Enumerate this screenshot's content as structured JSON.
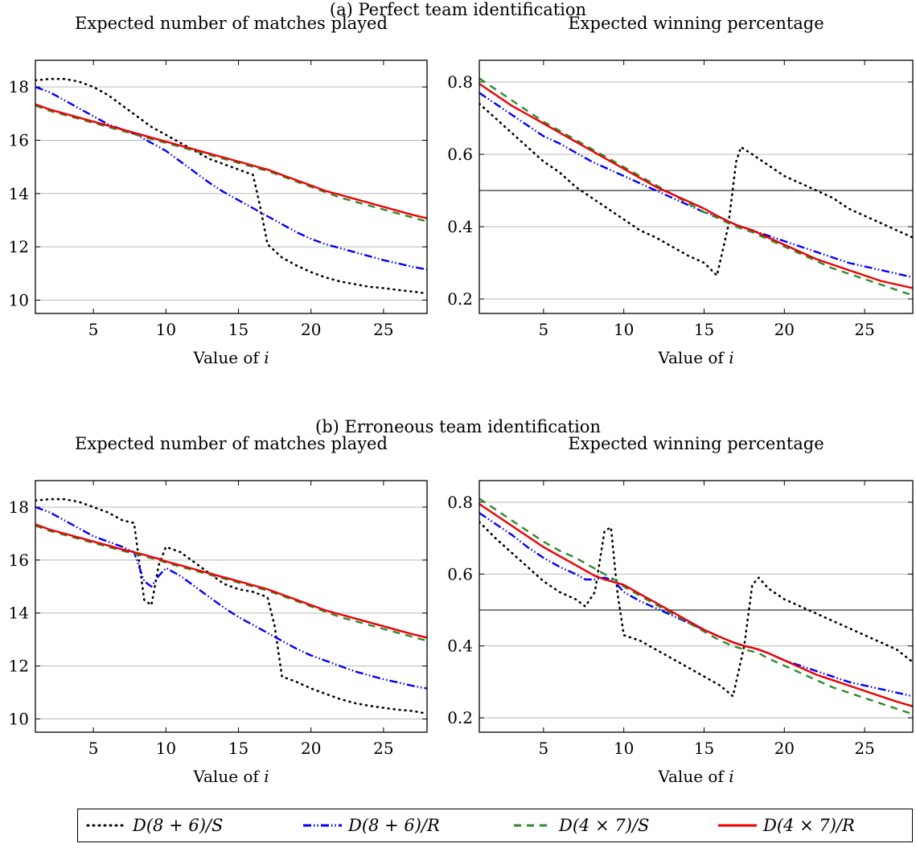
{
  "sections": [
    {
      "label": "(a) Perfect team identification"
    },
    {
      "label": "(b) Erroneous team identification"
    }
  ],
  "legend": [
    {
      "label": "D(8 + 6)/S",
      "color": "#000000",
      "style": "dotted"
    },
    {
      "label": "D(8 + 6)/R",
      "color": "#0000ff",
      "style": "dashdotdot"
    },
    {
      "label": "D(4 × 7)/S",
      "color": "#2e8b2e",
      "style": "dashed"
    },
    {
      "label": "D(4 × 7)/R",
      "color": "#ee0000",
      "style": "solid"
    }
  ],
  "chart_data": [
    {
      "type": "line",
      "title": "Expected number of matches played",
      "xlabel": "Value of i",
      "ylabel": "",
      "xlim": [
        1,
        28
      ],
      "ylim": [
        9.5,
        19
      ],
      "xticks": [
        5,
        10,
        15,
        20,
        25
      ],
      "yticks": [
        10,
        12,
        14,
        16,
        18
      ],
      "grid": "horizontal",
      "x": [
        1,
        2,
        3,
        4,
        5,
        6,
        7,
        8,
        9,
        10,
        11,
        12,
        13,
        14,
        15,
        16,
        16.5,
        17,
        18,
        19,
        20,
        21,
        22,
        23,
        24,
        25,
        26,
        27,
        28
      ],
      "series": [
        {
          "name": "D(8 + 6)/S",
          "values": [
            18.25,
            18.3,
            18.3,
            18.2,
            18.0,
            17.7,
            17.3,
            16.9,
            16.5,
            16.2,
            15.9,
            15.6,
            15.3,
            15.1,
            14.9,
            14.7,
            13.5,
            12.1,
            11.6,
            11.3,
            11.05,
            10.85,
            10.7,
            10.6,
            10.5,
            10.45,
            10.38,
            10.32,
            10.25
          ]
        },
        {
          "name": "D(8 + 6)/R",
          "values": [
            18.0,
            17.8,
            17.5,
            17.2,
            16.9,
            16.6,
            16.4,
            16.2,
            15.9,
            15.6,
            15.2,
            14.8,
            14.4,
            14.05,
            13.75,
            13.45,
            13.3,
            13.15,
            12.85,
            12.55,
            12.3,
            12.1,
            11.95,
            11.8,
            11.65,
            11.5,
            11.38,
            11.25,
            11.15
          ]
        },
        {
          "name": "D(4 × 7)/S",
          "values": [
            17.3,
            17.1,
            16.95,
            16.8,
            16.65,
            16.5,
            16.35,
            16.2,
            16.05,
            15.9,
            15.75,
            15.6,
            15.45,
            15.3,
            15.15,
            15.0,
            14.92,
            14.85,
            14.65,
            14.45,
            14.25,
            14.05,
            13.85,
            13.7,
            13.55,
            13.4,
            13.25,
            13.1,
            12.95
          ]
        },
        {
          "name": "D(4 × 7)/R",
          "values": [
            17.35,
            17.15,
            17.0,
            16.85,
            16.7,
            16.55,
            16.4,
            16.25,
            16.1,
            15.95,
            15.8,
            15.65,
            15.5,
            15.35,
            15.2,
            15.05,
            14.97,
            14.9,
            14.7,
            14.5,
            14.3,
            14.1,
            13.95,
            13.8,
            13.65,
            13.5,
            13.35,
            13.2,
            13.07
          ]
        }
      ]
    },
    {
      "type": "line",
      "title": "Expected winning percentage",
      "xlabel": "Value of i",
      "ylabel": "",
      "xlim": [
        1,
        28
      ],
      "ylim": [
        0.16,
        0.86
      ],
      "xticks": [
        5,
        10,
        15,
        20,
        25
      ],
      "yticks": [
        0.2,
        0.4,
        0.6,
        0.8
      ],
      "grid": "horizontal",
      "reference_line": 0.5,
      "x": [
        1,
        2,
        3,
        4,
        5,
        6,
        7,
        8,
        9,
        10,
        11,
        12,
        13,
        14,
        15,
        15.8,
        16.5,
        17,
        17.3,
        18,
        19,
        20,
        21,
        22,
        23,
        24,
        25,
        26,
        27,
        28
      ],
      "series": [
        {
          "name": "D(8 + 6)/S",
          "values": [
            0.74,
            0.7,
            0.66,
            0.62,
            0.58,
            0.55,
            0.51,
            0.48,
            0.45,
            0.42,
            0.39,
            0.37,
            0.345,
            0.32,
            0.3,
            0.265,
            0.4,
            0.58,
            0.62,
            0.6,
            0.57,
            0.54,
            0.52,
            0.5,
            0.48,
            0.45,
            0.43,
            0.41,
            0.39,
            0.37
          ]
        },
        {
          "name": "D(8 + 6)/R",
          "values": [
            0.77,
            0.74,
            0.71,
            0.68,
            0.65,
            0.63,
            0.605,
            0.58,
            0.56,
            0.54,
            0.52,
            0.5,
            0.48,
            0.46,
            0.44,
            0.43,
            0.415,
            0.405,
            0.4,
            0.39,
            0.375,
            0.36,
            0.345,
            0.33,
            0.315,
            0.3,
            0.29,
            0.28,
            0.27,
            0.26
          ]
        },
        {
          "name": "D(4 × 7)/S",
          "values": [
            0.81,
            0.78,
            0.75,
            0.72,
            0.69,
            0.665,
            0.64,
            0.615,
            0.59,
            0.565,
            0.54,
            0.515,
            0.49,
            0.465,
            0.44,
            0.425,
            0.41,
            0.4,
            0.395,
            0.385,
            0.365,
            0.345,
            0.325,
            0.305,
            0.285,
            0.27,
            0.255,
            0.24,
            0.225,
            0.21
          ]
        },
        {
          "name": "D(4 × 7)/R",
          "values": [
            0.795,
            0.765,
            0.735,
            0.71,
            0.685,
            0.66,
            0.635,
            0.61,
            0.585,
            0.56,
            0.535,
            0.51,
            0.49,
            0.47,
            0.45,
            0.43,
            0.415,
            0.405,
            0.4,
            0.39,
            0.37,
            0.35,
            0.33,
            0.31,
            0.295,
            0.28,
            0.265,
            0.25,
            0.24,
            0.23
          ]
        }
      ]
    },
    {
      "type": "line",
      "title": "Expected number of matches played",
      "xlabel": "Value of i",
      "ylabel": "",
      "xlim": [
        1,
        28
      ],
      "ylim": [
        9.5,
        19
      ],
      "xticks": [
        5,
        10,
        15,
        20,
        25
      ],
      "yticks": [
        10,
        12,
        14,
        16,
        18
      ],
      "grid": "horizontal",
      "x": [
        1,
        2,
        3,
        4,
        5,
        6,
        7,
        7.8,
        8.5,
        9,
        9.5,
        10,
        11,
        12,
        13,
        14,
        15,
        16,
        17,
        17.5,
        18,
        19,
        20,
        21,
        22,
        23,
        24,
        25,
        26,
        27,
        28
      ],
      "series": [
        {
          "name": "D(8 + 6)/S",
          "values": [
            18.25,
            18.3,
            18.3,
            18.2,
            18.0,
            17.8,
            17.5,
            17.4,
            14.5,
            14.3,
            15.8,
            16.5,
            16.3,
            15.9,
            15.5,
            15.1,
            14.9,
            14.8,
            14.6,
            13.5,
            11.6,
            11.4,
            11.15,
            10.95,
            10.75,
            10.6,
            10.5,
            10.42,
            10.35,
            10.3,
            10.2
          ]
        },
        {
          "name": "D(8 + 6)/R",
          "values": [
            18.0,
            17.8,
            17.5,
            17.2,
            16.9,
            16.7,
            16.5,
            16.3,
            15.2,
            15.0,
            15.4,
            15.7,
            15.4,
            15.0,
            14.6,
            14.2,
            13.85,
            13.55,
            13.25,
            13.1,
            12.95,
            12.65,
            12.4,
            12.2,
            12.0,
            11.8,
            11.65,
            11.5,
            11.38,
            11.25,
            11.15
          ]
        },
        {
          "name": "D(4 × 7)/S",
          "values": [
            17.3,
            17.1,
            16.95,
            16.8,
            16.65,
            16.5,
            16.35,
            16.25,
            16.15,
            16.07,
            16.0,
            15.9,
            15.75,
            15.6,
            15.45,
            15.3,
            15.15,
            15.0,
            14.85,
            14.75,
            14.65,
            14.45,
            14.25,
            14.05,
            13.85,
            13.7,
            13.55,
            13.4,
            13.25,
            13.1,
            12.95
          ]
        },
        {
          "name": "D(4 × 7)/R",
          "values": [
            17.35,
            17.15,
            17.0,
            16.85,
            16.7,
            16.55,
            16.4,
            16.3,
            16.2,
            16.12,
            16.05,
            15.95,
            15.8,
            15.65,
            15.5,
            15.35,
            15.2,
            15.05,
            14.9,
            14.8,
            14.7,
            14.5,
            14.3,
            14.1,
            13.95,
            13.8,
            13.65,
            13.5,
            13.35,
            13.2,
            13.07
          ]
        }
      ]
    },
    {
      "type": "line",
      "title": "Expected winning percentage",
      "xlabel": "Value of i",
      "ylabel": "",
      "xlim": [
        1,
        28
      ],
      "ylim": [
        0.16,
        0.86
      ],
      "xticks": [
        5,
        10,
        15,
        20,
        25
      ],
      "yticks": [
        0.2,
        0.4,
        0.6,
        0.8
      ],
      "grid": "horizontal",
      "reference_line": 0.5,
      "x": [
        1,
        2,
        3,
        4,
        5,
        6,
        7,
        7.6,
        8.2,
        8.8,
        9.2,
        9.6,
        10,
        11,
        12,
        13,
        14,
        15,
        16,
        16.8,
        17.5,
        18,
        18.4,
        19,
        20,
        21,
        22,
        23,
        24,
        25,
        26,
        27,
        28
      ],
      "series": [
        {
          "name": "D(8 + 6)/S",
          "values": [
            0.745,
            0.7,
            0.66,
            0.62,
            0.58,
            0.55,
            0.53,
            0.51,
            0.55,
            0.72,
            0.73,
            0.55,
            0.43,
            0.415,
            0.39,
            0.365,
            0.34,
            0.315,
            0.29,
            0.26,
            0.4,
            0.57,
            0.59,
            0.56,
            0.53,
            0.51,
            0.49,
            0.47,
            0.45,
            0.43,
            0.41,
            0.39,
            0.355
          ]
        },
        {
          "name": "D(8 + 6)/R",
          "values": [
            0.77,
            0.74,
            0.71,
            0.675,
            0.645,
            0.62,
            0.6,
            0.585,
            0.585,
            0.59,
            0.585,
            0.57,
            0.55,
            0.525,
            0.505,
            0.485,
            0.465,
            0.445,
            0.425,
            0.41,
            0.4,
            0.395,
            0.39,
            0.38,
            0.36,
            0.345,
            0.33,
            0.315,
            0.3,
            0.29,
            0.28,
            0.27,
            0.26
          ]
        },
        {
          "name": "D(4 × 7)/S",
          "values": [
            0.81,
            0.78,
            0.75,
            0.72,
            0.69,
            0.665,
            0.645,
            0.63,
            0.615,
            0.6,
            0.59,
            0.58,
            0.565,
            0.54,
            0.515,
            0.49,
            0.465,
            0.44,
            0.415,
            0.4,
            0.39,
            0.385,
            0.38,
            0.365,
            0.345,
            0.325,
            0.305,
            0.285,
            0.27,
            0.255,
            0.24,
            0.225,
            0.21
          ]
        },
        {
          "name": "D(4 × 7)/R",
          "values": [
            0.795,
            0.765,
            0.735,
            0.705,
            0.675,
            0.65,
            0.625,
            0.61,
            0.595,
            0.585,
            0.58,
            0.575,
            0.57,
            0.545,
            0.52,
            0.495,
            0.47,
            0.445,
            0.425,
            0.41,
            0.4,
            0.395,
            0.39,
            0.38,
            0.36,
            0.34,
            0.32,
            0.305,
            0.29,
            0.275,
            0.26,
            0.245,
            0.232
          ]
        }
      ]
    }
  ]
}
